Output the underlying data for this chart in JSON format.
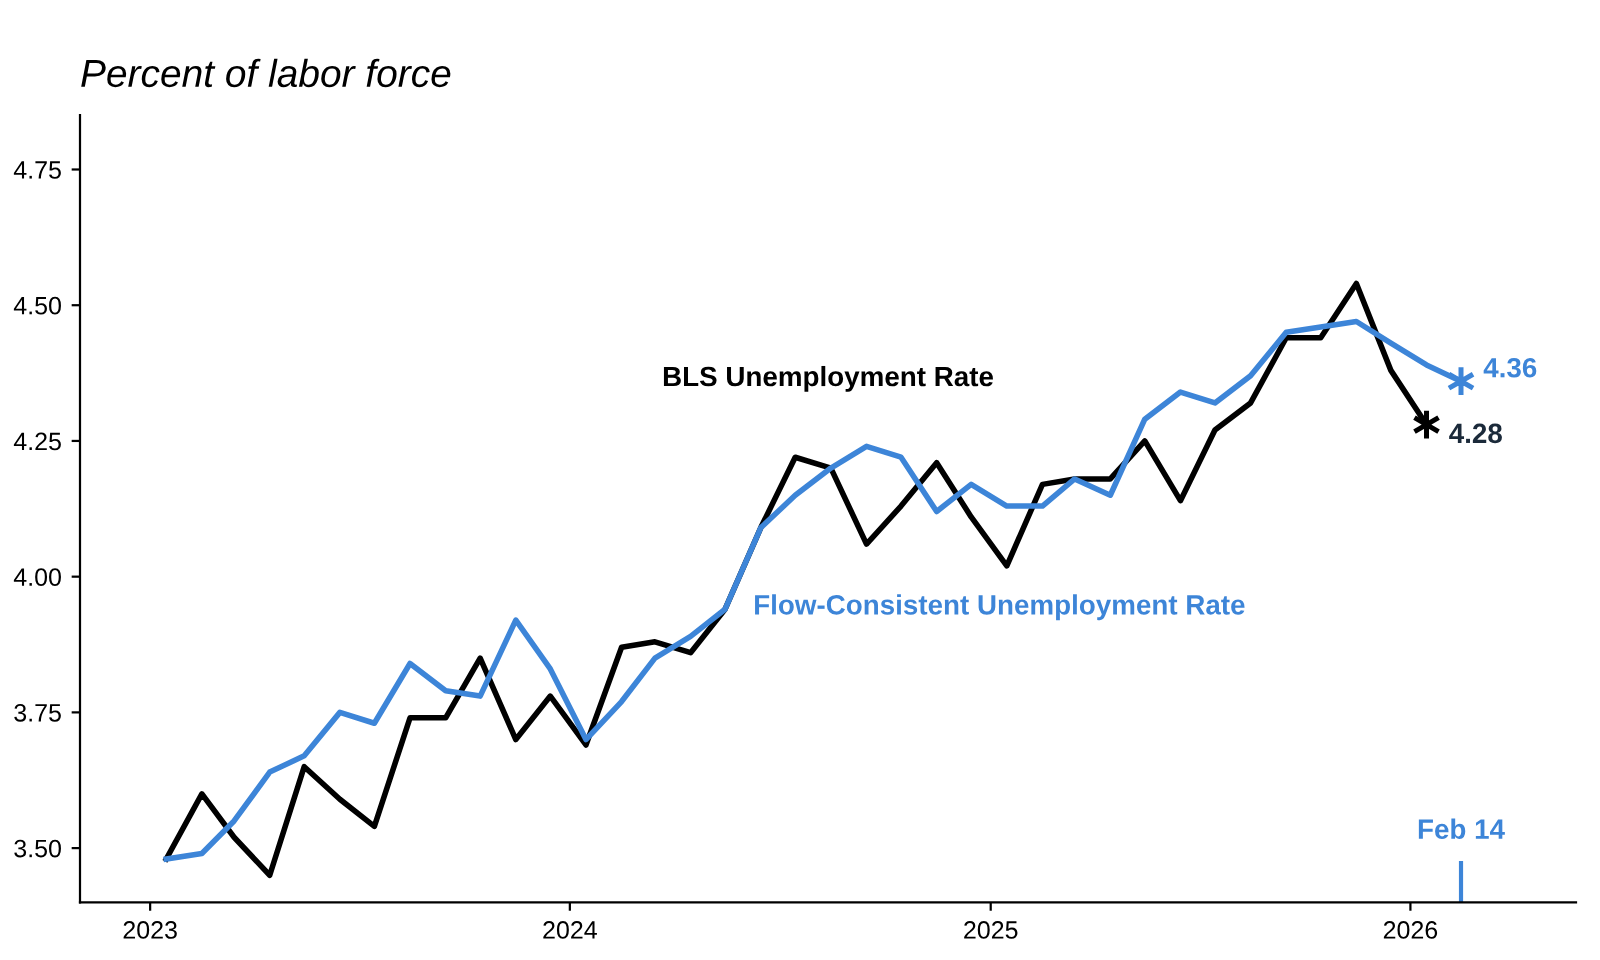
{
  "chart_data": {
    "type": "line",
    "title": "Percent of labor force",
    "xlim": [
      "2022-11-01",
      "2026-05-25"
    ],
    "xticks": [
      {
        "value": "2023-01-01",
        "label": "2023"
      },
      {
        "value": "2024-01-01",
        "label": "2024"
      },
      {
        "value": "2025-01-01",
        "label": "2025"
      },
      {
        "value": "2026-01-01",
        "label": "2026"
      }
    ],
    "ylim": [
      3.4,
      4.85
    ],
    "yticks": [
      {
        "value": 3.5,
        "label": "3.50"
      },
      3.75,
      {
        "value": 4.0,
        "label": "4.00"
      },
      4.25,
      {
        "value": 4.5,
        "label": "4.50"
      },
      4.75
    ],
    "grid": false,
    "legend": false,
    "line_style": "solid",
    "series": [
      {
        "name": "BLS Unemployment Rate",
        "color": "#000000",
        "x": [
          "2023-01-15",
          "2023-02-15",
          "2023-03-15",
          "2023-04-15",
          "2023-05-15",
          "2023-06-15",
          "2023-07-15",
          "2023-08-15",
          "2023-09-15",
          "2023-10-15",
          "2023-11-15",
          "2023-12-15",
          "2024-01-15",
          "2024-02-15",
          "2024-03-15",
          "2024-04-15",
          "2024-05-15",
          "2024-06-15",
          "2024-07-15",
          "2024-08-15",
          "2024-09-15",
          "2024-10-15",
          "2024-11-15",
          "2024-12-15",
          "2025-01-15",
          "2025-02-15",
          "2025-03-15",
          "2025-04-15",
          "2025-05-15",
          "2025-06-15",
          "2025-07-15",
          "2025-08-15",
          "2025-09-15",
          "2025-10-15",
          "2025-11-15",
          "2025-12-15",
          "2026-01-15"
        ],
        "values": [
          3.48,
          3.6,
          3.52,
          3.45,
          3.65,
          3.59,
          3.54,
          3.74,
          3.74,
          3.85,
          3.7,
          3.78,
          3.69,
          3.87,
          3.88,
          3.86,
          3.94,
          4.09,
          4.22,
          4.2,
          4.06,
          4.13,
          4.21,
          4.11,
          4.02,
          4.17,
          4.18,
          4.18,
          4.25,
          4.14,
          4.27,
          4.32,
          4.44,
          4.44,
          4.54,
          4.38,
          4.28
        ],
        "value_labels": [
          null,
          null,
          null,
          null,
          null,
          null,
          null,
          null,
          null,
          null,
          null,
          null,
          null,
          null,
          null,
          null,
          null,
          null,
          null,
          null,
          null,
          null,
          null,
          null,
          null,
          null,
          null,
          null,
          null,
          null,
          null,
          null,
          null,
          null,
          null,
          null,
          "4.28"
        ]
      },
      {
        "name": "Flow-Consistent Unemployment Rate",
        "color": "#3d85d8",
        "x": [
          "2023-01-15",
          "2023-02-15",
          "2023-03-15",
          "2023-04-15",
          "2023-05-15",
          "2023-06-15",
          "2023-07-15",
          "2023-08-15",
          "2023-09-15",
          "2023-10-15",
          "2023-11-15",
          "2023-12-15",
          "2024-01-15",
          "2024-02-15",
          "2024-03-15",
          "2024-04-15",
          "2024-05-15",
          "2024-06-15",
          "2024-07-15",
          "2024-08-15",
          "2024-09-15",
          "2024-10-15",
          "2024-11-15",
          "2024-12-15",
          "2025-01-15",
          "2025-02-15",
          "2025-03-15",
          "2025-04-15",
          "2025-05-15",
          "2025-06-15",
          "2025-07-15",
          "2025-08-15",
          "2025-09-15",
          "2025-10-15",
          "2025-11-15",
          "2025-12-15",
          "2026-01-15",
          "2026-02-14"
        ],
        "values": [
          3.48,
          3.49,
          3.55,
          3.64,
          3.67,
          3.75,
          3.73,
          3.84,
          3.79,
          3.78,
          3.92,
          3.83,
          3.7,
          3.77,
          3.85,
          3.89,
          3.94,
          4.09,
          4.15,
          4.2,
          4.24,
          4.22,
          4.12,
          4.17,
          4.13,
          4.13,
          4.18,
          4.15,
          4.29,
          4.34,
          4.32,
          4.37,
          4.45,
          4.46,
          4.47,
          4.43,
          4.39,
          4.36
        ],
        "value_labels": [
          null,
          null,
          null,
          null,
          null,
          null,
          null,
          null,
          null,
          null,
          null,
          null,
          null,
          null,
          null,
          null,
          null,
          null,
          null,
          null,
          null,
          null,
          null,
          null,
          null,
          null,
          null,
          null,
          null,
          null,
          null,
          null,
          null,
          null,
          null,
          null,
          null,
          "4.36"
        ]
      }
    ],
    "ref_lines": [
      {
        "axis": "x",
        "value": "2026-02-14",
        "label": "Feb 14",
        "color": "#3d85d8"
      }
    ]
  }
}
